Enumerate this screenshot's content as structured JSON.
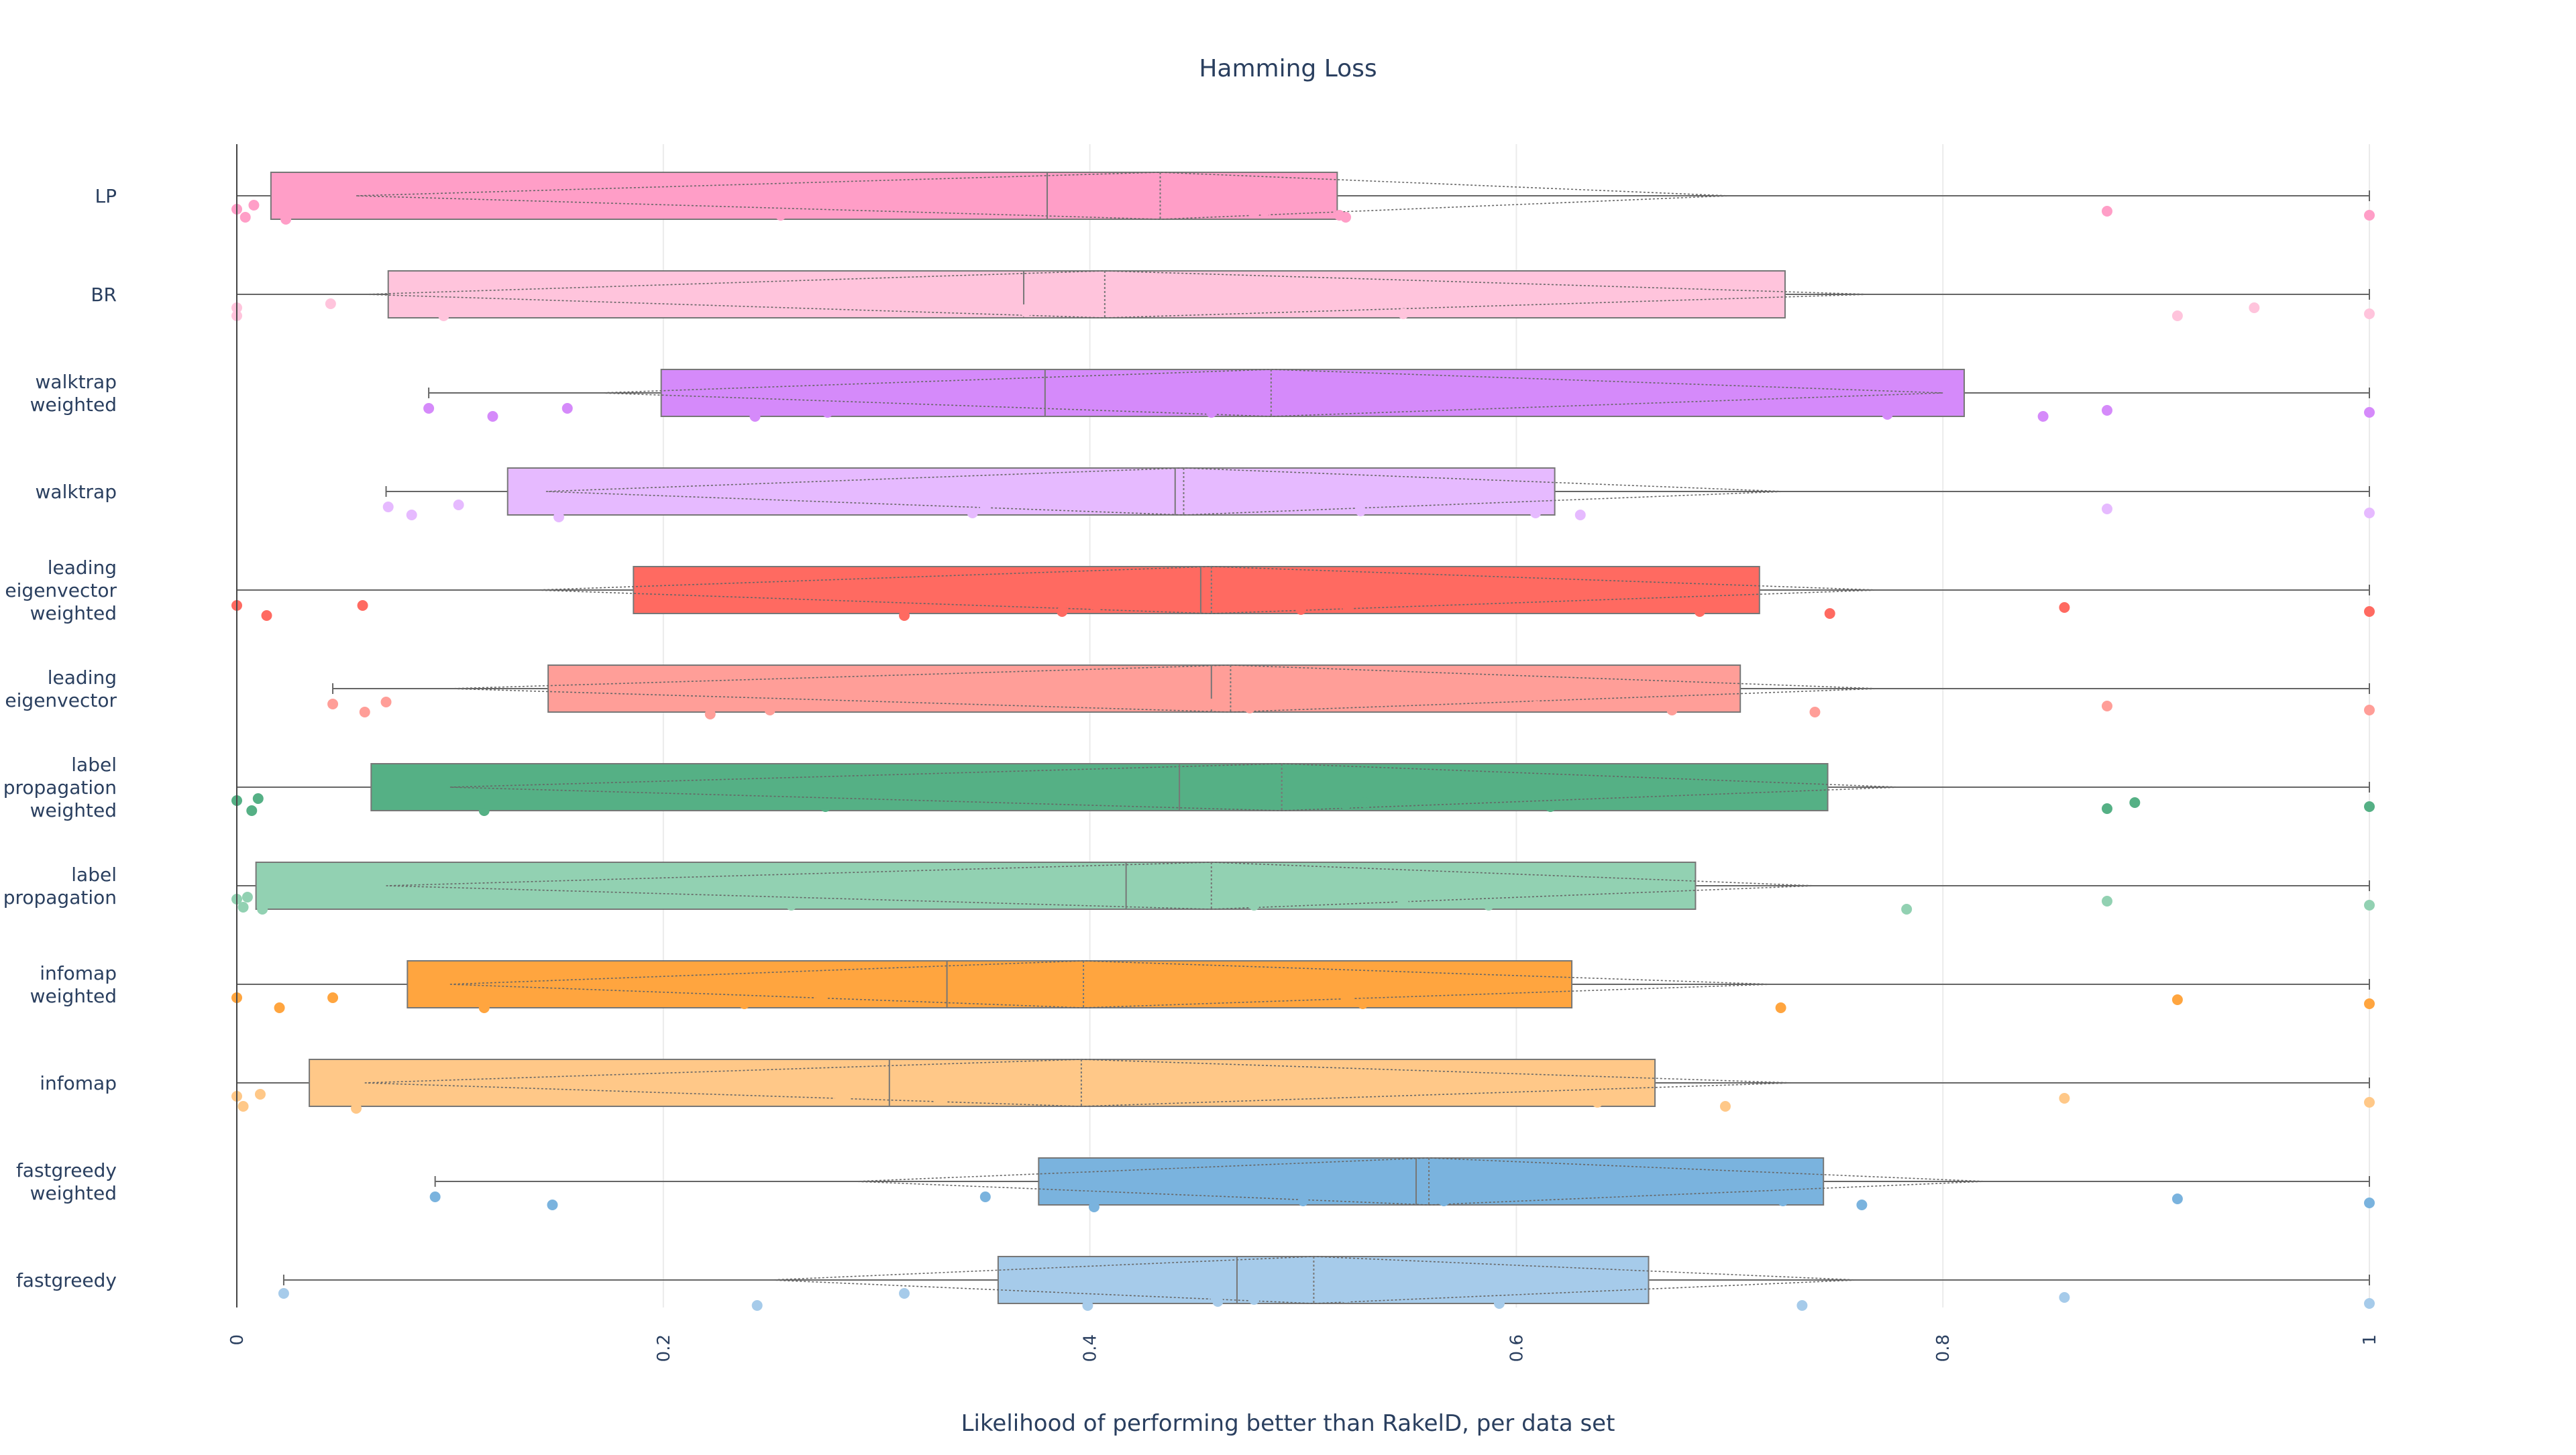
{
  "chart_data": {
    "type": "box",
    "title": "Hamming Loss",
    "xlabel": "Likelihood of performing better than RakelD, per data set",
    "xlim": [
      0,
      1
    ],
    "xticks": [
      0,
      0.2,
      0.4,
      0.6,
      0.8,
      1
    ],
    "xtick_labels": [
      "0",
      "0.2",
      "0.4",
      "0.6",
      "0.8",
      "1"
    ],
    "series": [
      {
        "name": "LP",
        "label_lines": [
          "LP"
        ],
        "color": "#ff9ec7",
        "q1": 0.016,
        "median": 0.38,
        "q3": 0.516,
        "mean": 0.433,
        "whisker_low": 0.0,
        "whisker_high": 1.0,
        "notch_low": 0.056,
        "notch_high": 0.7,
        "points": [
          0.0,
          0.004,
          0.008,
          0.023,
          0.255,
          0.39,
          0.477,
          0.482,
          0.517,
          0.52,
          0.877,
          1.0
        ],
        "jitter": [
          0.4,
          0.6,
          0.3,
          0.65,
          0.55,
          0.4,
          0.5,
          0.45,
          0.55,
          0.6,
          0.45,
          0.55
        ]
      },
      {
        "name": "BR",
        "label_lines": [
          "BR"
        ],
        "color": "#ffc4dc",
        "q1": 0.071,
        "median": 0.369,
        "q3": 0.726,
        "mean": 0.407,
        "whisker_low": 0.0,
        "whisker_high": 1.0,
        "notch_low": 0.06,
        "notch_high": 0.766,
        "points": [
          0.0,
          0.0,
          0.044,
          0.097,
          0.138,
          0.369,
          0.37,
          0.474,
          0.547,
          0.91,
          0.946,
          1.0
        ],
        "jitter": [
          0.4,
          0.6,
          0.3,
          0.6,
          0.5,
          0.45,
          0.5,
          0.4,
          0.55,
          0.6,
          0.4,
          0.55
        ]
      },
      {
        "name": "walktrap weighted",
        "label_lines": [
          "walktrap",
          "weighted"
        ],
        "color": "#d58afa",
        "q1": 0.199,
        "median": 0.379,
        "q3": 0.81,
        "mean": 0.485,
        "whisker_low": 0.09,
        "whisker_high": 1.0,
        "notch_low": 0.17,
        "notch_high": 0.8,
        "points": [
          0.09,
          0.12,
          0.155,
          0.243,
          0.277,
          0.301,
          0.457,
          0.674,
          0.774,
          0.847,
          0.877,
          1.0
        ],
        "jitter": [
          0.45,
          0.65,
          0.45,
          0.65,
          0.55,
          0.45,
          0.55,
          0.5,
          0.6,
          0.65,
          0.5,
          0.55
        ]
      },
      {
        "name": "walktrap",
        "label_lines": [
          "walktrap"
        ],
        "color": "#e6baff",
        "q1": 0.127,
        "median": 0.44,
        "q3": 0.618,
        "mean": 0.444,
        "whisker_low": 0.07,
        "whisker_high": 1.0,
        "notch_low": 0.145,
        "notch_high": 0.726,
        "points": [
          0.071,
          0.082,
          0.104,
          0.151,
          0.345,
          0.351,
          0.527,
          0.585,
          0.609,
          0.63,
          0.877,
          1.0
        ],
        "jitter": [
          0.45,
          0.65,
          0.4,
          0.7,
          0.6,
          0.45,
          0.55,
          0.5,
          0.6,
          0.65,
          0.5,
          0.6
        ]
      },
      {
        "name": "leading eigenvector weighted",
        "label_lines": [
          "leading",
          "eigenvector",
          "weighted"
        ],
        "color": "#ff6a61",
        "q1": 0.186,
        "median": 0.452,
        "q3": 0.714,
        "mean": 0.457,
        "whisker_low": 0.0,
        "whisker_high": 1.0,
        "notch_low": 0.14,
        "notch_high": 0.77,
        "points": [
          0.0,
          0.014,
          0.059,
          0.313,
          0.387,
          0.403,
          0.499,
          0.521,
          0.686,
          0.747,
          0.857,
          1.0
        ],
        "jitter": [
          0.45,
          0.7,
          0.45,
          0.7,
          0.6,
          0.45,
          0.55,
          0.5,
          0.6,
          0.65,
          0.5,
          0.6
        ]
      },
      {
        "name": "leading eigenvector",
        "label_lines": [
          "leading",
          "eigenvector"
        ],
        "color": "#ff9e98",
        "q1": 0.146,
        "median": 0.457,
        "q3": 0.705,
        "mean": 0.466,
        "whisker_low": 0.045,
        "whisker_high": 1.0,
        "notch_low": 0.1,
        "notch_high": 0.77,
        "points": [
          0.045,
          0.06,
          0.07,
          0.222,
          0.25,
          0.457,
          0.475,
          0.609,
          0.673,
          0.74,
          0.877,
          1.0
        ],
        "jitter": [
          0.45,
          0.65,
          0.4,
          0.7,
          0.6,
          0.45,
          0.55,
          0.5,
          0.6,
          0.65,
          0.5,
          0.6
        ]
      },
      {
        "name": "label propagation weighted",
        "label_lines": [
          "label",
          "propagation",
          "weighted"
        ],
        "color": "#55b085",
        "q1": 0.063,
        "median": 0.442,
        "q3": 0.746,
        "mean": 0.49,
        "whisker_low": 0.0,
        "whisker_high": 1.0,
        "notch_low": 0.1,
        "notch_high": 0.78,
        "points": [
          0.0,
          0.007,
          0.01,
          0.116,
          0.276,
          0.457,
          0.52,
          0.529,
          0.616,
          0.877,
          0.89,
          1.0
        ],
        "jitter": [
          0.4,
          0.65,
          0.35,
          0.65,
          0.55,
          0.45,
          0.5,
          0.45,
          0.55,
          0.6,
          0.45,
          0.55
        ]
      },
      {
        "name": "label propagation",
        "label_lines": [
          "label",
          "propagation"
        ],
        "color": "#92d1b2",
        "q1": 0.009,
        "median": 0.417,
        "q3": 0.684,
        "mean": 0.457,
        "whisker_low": 0.0,
        "whisker_high": 1.0,
        "notch_low": 0.07,
        "notch_high": 0.74,
        "points": [
          0.0,
          0.003,
          0.005,
          0.012,
          0.26,
          0.436,
          0.477,
          0.547,
          0.587,
          0.783,
          0.877,
          1.0
        ],
        "jitter": [
          0.4,
          0.6,
          0.35,
          0.65,
          0.55,
          0.45,
          0.55,
          0.5,
          0.55,
          0.65,
          0.45,
          0.55
        ]
      },
      {
        "name": "infomap weighted",
        "label_lines": [
          "infomap",
          "weighted"
        ],
        "color": "#ffa53f",
        "q1": 0.08,
        "median": 0.333,
        "q3": 0.626,
        "mean": 0.397,
        "whisker_low": 0.0,
        "whisker_high": 1.0,
        "notch_low": 0.1,
        "notch_high": 0.72,
        "points": [
          0.0,
          0.02,
          0.045,
          0.116,
          0.238,
          0.274,
          0.39,
          0.521,
          0.528,
          0.724,
          0.91,
          1.0
        ],
        "jitter": [
          0.4,
          0.65,
          0.4,
          0.65,
          0.55,
          0.4,
          0.5,
          0.45,
          0.55,
          0.65,
          0.45,
          0.55
        ]
      },
      {
        "name": "infomap",
        "label_lines": [
          "infomap"
        ],
        "color": "#ffc888",
        "q1": 0.034,
        "median": 0.306,
        "q3": 0.665,
        "mean": 0.396,
        "whisker_low": 0.0,
        "whisker_high": 1.0,
        "notch_low": 0.06,
        "notch_high": 0.73,
        "points": [
          0.0,
          0.003,
          0.011,
          0.056,
          0.283,
          0.285,
          0.33,
          0.6,
          0.638,
          0.698,
          0.857,
          1.0
        ],
        "jitter": [
          0.4,
          0.65,
          0.35,
          0.7,
          0.45,
          0.5,
          0.5,
          0.45,
          0.55,
          0.65,
          0.45,
          0.55
        ]
      },
      {
        "name": "fastgreedy weighted",
        "label_lines": [
          "fastgreedy",
          "weighted"
        ],
        "color": "#7ab3de",
        "q1": 0.376,
        "median": 0.553,
        "q3": 0.744,
        "mean": 0.559,
        "whisker_low": 0.093,
        "whisker_high": 1.0,
        "notch_low": 0.29,
        "notch_high": 0.82,
        "points": [
          0.093,
          0.148,
          0.351,
          0.402,
          0.5,
          0.539,
          0.566,
          0.698,
          0.725,
          0.762,
          0.91,
          1.0
        ],
        "jitter": [
          0.45,
          0.65,
          0.45,
          0.7,
          0.55,
          0.45,
          0.55,
          0.5,
          0.55,
          0.65,
          0.5,
          0.6
        ]
      },
      {
        "name": "fastgreedy",
        "label_lines": [
          "fastgreedy"
        ],
        "color": "#a6cbea",
        "q1": 0.357,
        "median": 0.469,
        "q3": 0.662,
        "mean": 0.505,
        "whisker_low": 0.022,
        "whisker_high": 1.0,
        "notch_low": 0.25,
        "notch_high": 0.76,
        "points": [
          0.022,
          0.244,
          0.313,
          0.399,
          0.459,
          0.46,
          0.477,
          0.52,
          0.592,
          0.734,
          0.857,
          1.0
        ],
        "jitter": [
          0.4,
          0.7,
          0.4,
          0.7,
          0.5,
          0.6,
          0.55,
          0.5,
          0.65,
          0.7,
          0.5,
          0.65
        ]
      }
    ]
  }
}
